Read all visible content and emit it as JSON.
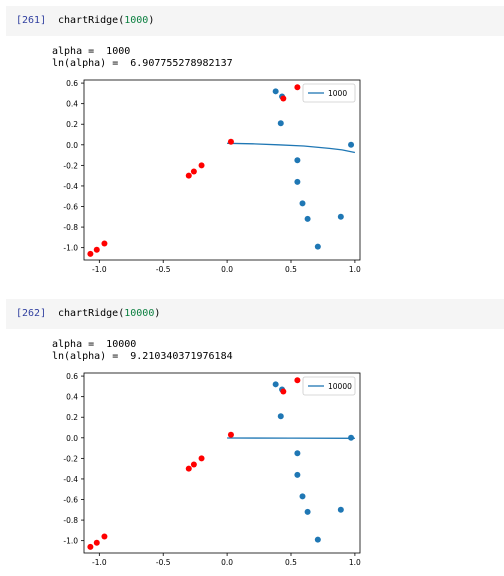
{
  "cells": [
    {
      "prompt": "[261]",
      "code_fn": "chartRidge(",
      "code_arg": "1000",
      "code_close": ")",
      "out_alpha": "alpha =  1000",
      "out_ln": "ln(alpha) =  6.907755278982137"
    },
    {
      "prompt": "[262]",
      "code_fn": "chartRidge(",
      "code_arg": "10000",
      "code_close": ")",
      "out_alpha": "alpha =  10000",
      "out_ln": "ln(alpha) =  9.210340371976184"
    }
  ],
  "chart_data": [
    {
      "type": "scatter",
      "xlim": [
        -1.12,
        1.04
      ],
      "ylim": [
        -1.12,
        0.63
      ],
      "xticks": [
        -1.0,
        -0.5,
        0.0,
        0.5,
        1.0
      ],
      "xtick_labels": [
        "-1.0",
        "-0.5",
        "0.0",
        "0.5",
        "1.0"
      ],
      "yticks": [
        0.6,
        0.4,
        0.2,
        0.0,
        -0.2,
        -0.4,
        -0.6,
        -0.8,
        -1.0
      ],
      "ytick_labels": [
        "0.6",
        "0.4",
        "0.2",
        "0.0",
        "-0.2",
        "-0.4",
        "-0.6",
        "-0.8",
        "-1.0"
      ],
      "blue_color": "#1f77b4",
      "red_color": "#ff0000",
      "blue_points": [
        [
          0.38,
          0.52
        ],
        [
          0.43,
          0.47
        ],
        [
          0.42,
          0.21
        ],
        [
          0.97,
          0.0
        ],
        [
          0.55,
          -0.15
        ],
        [
          0.55,
          -0.36
        ],
        [
          0.59,
          -0.57
        ],
        [
          0.63,
          -0.72
        ],
        [
          0.89,
          -0.7
        ],
        [
          0.71,
          -0.99
        ]
      ],
      "red_points": [
        [
          0.55,
          0.56
        ],
        [
          0.44,
          0.45
        ],
        [
          0.03,
          0.03
        ],
        [
          -0.2,
          -0.2
        ],
        [
          -0.26,
          -0.26
        ],
        [
          -0.3,
          -0.3
        ],
        [
          -0.96,
          -0.96
        ],
        [
          -1.02,
          -1.02
        ],
        [
          -1.07,
          -1.06
        ]
      ],
      "series": [
        {
          "name": "1000",
          "x": [
            0.0,
            0.2,
            0.4,
            0.6,
            0.8,
            0.9,
            1.0
          ],
          "y": [
            0.015,
            0.01,
            0.0,
            -0.012,
            -0.035,
            -0.05,
            -0.075
          ]
        }
      ],
      "legend_placement": "top-right",
      "grid": false
    },
    {
      "type": "scatter",
      "xlim": [
        -1.12,
        1.04
      ],
      "ylim": [
        -1.12,
        0.63
      ],
      "xticks": [
        -1.0,
        -0.5,
        0.0,
        0.5,
        1.0
      ],
      "xtick_labels": [
        "-1.0",
        "-0.5",
        "0.0",
        "0.5",
        "1.0"
      ],
      "yticks": [
        0.6,
        0.4,
        0.2,
        0.0,
        -0.2,
        -0.4,
        -0.6,
        -0.8,
        -1.0
      ],
      "ytick_labels": [
        "0.6",
        "0.4",
        "0.2",
        "0.0",
        "-0.2",
        "-0.4",
        "-0.6",
        "-0.8",
        "-1.0"
      ],
      "blue_color": "#1f77b4",
      "red_color": "#ff0000",
      "blue_points": [
        [
          0.38,
          0.52
        ],
        [
          0.43,
          0.47
        ],
        [
          0.42,
          0.21
        ],
        [
          0.97,
          0.0
        ],
        [
          0.55,
          -0.15
        ],
        [
          0.55,
          -0.36
        ],
        [
          0.59,
          -0.57
        ],
        [
          0.63,
          -0.72
        ],
        [
          0.89,
          -0.7
        ],
        [
          0.71,
          -0.99
        ]
      ],
      "red_points": [
        [
          0.55,
          0.56
        ],
        [
          0.44,
          0.45
        ],
        [
          0.03,
          0.03
        ],
        [
          -0.2,
          -0.2
        ],
        [
          -0.26,
          -0.26
        ],
        [
          -0.3,
          -0.3
        ],
        [
          -0.96,
          -0.96
        ],
        [
          -1.02,
          -1.02
        ],
        [
          -1.07,
          -1.06
        ]
      ],
      "series": [
        {
          "name": "10000",
          "x": [
            0.0,
            0.5,
            1.0
          ],
          "y": [
            -0.002,
            -0.003,
            -0.005
          ]
        }
      ],
      "legend_placement": "top-right",
      "grid": false
    }
  ]
}
